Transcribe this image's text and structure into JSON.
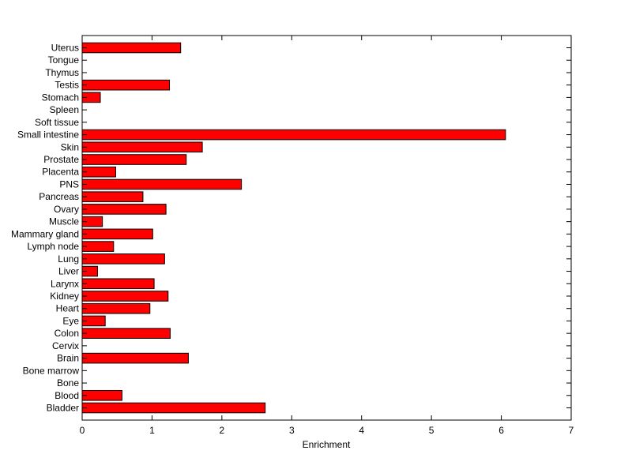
{
  "chart_data": {
    "type": "bar",
    "orientation": "horizontal",
    "categories": [
      "Uterus",
      "Tongue",
      "Thymus",
      "Testis",
      "Stomach",
      "Spleen",
      "Soft tissue",
      "Small intestine",
      "Skin",
      "Prostate",
      "Placenta",
      "PNS",
      "Pancreas",
      "Ovary",
      "Muscle",
      "Mammary gland",
      "Lymph node",
      "Lung",
      "Liver",
      "Larynx",
      "Kidney",
      "Heart",
      "Eye",
      "Colon",
      "Cervix",
      "Brain",
      "Bone marrow",
      "Bone",
      "Blood",
      "Bladder"
    ],
    "values": [
      1.41,
      0,
      0,
      1.25,
      0.26,
      0,
      0,
      6.06,
      1.72,
      1.49,
      0.48,
      2.28,
      0.87,
      1.2,
      0.29,
      1.01,
      0.45,
      1.18,
      0.22,
      1.03,
      1.23,
      0.97,
      0.33,
      1.26,
      0,
      1.52,
      0,
      0,
      0.57,
      2.62
    ],
    "xlabel": "Enrichment",
    "ylabel": "",
    "title": "",
    "xlim": [
      0,
      7
    ],
    "xticks": [
      0,
      1,
      2,
      3,
      4,
      5,
      6,
      7
    ],
    "grid": false,
    "bar_color": "#ff0000",
    "bar_edge_color": "#000000"
  }
}
